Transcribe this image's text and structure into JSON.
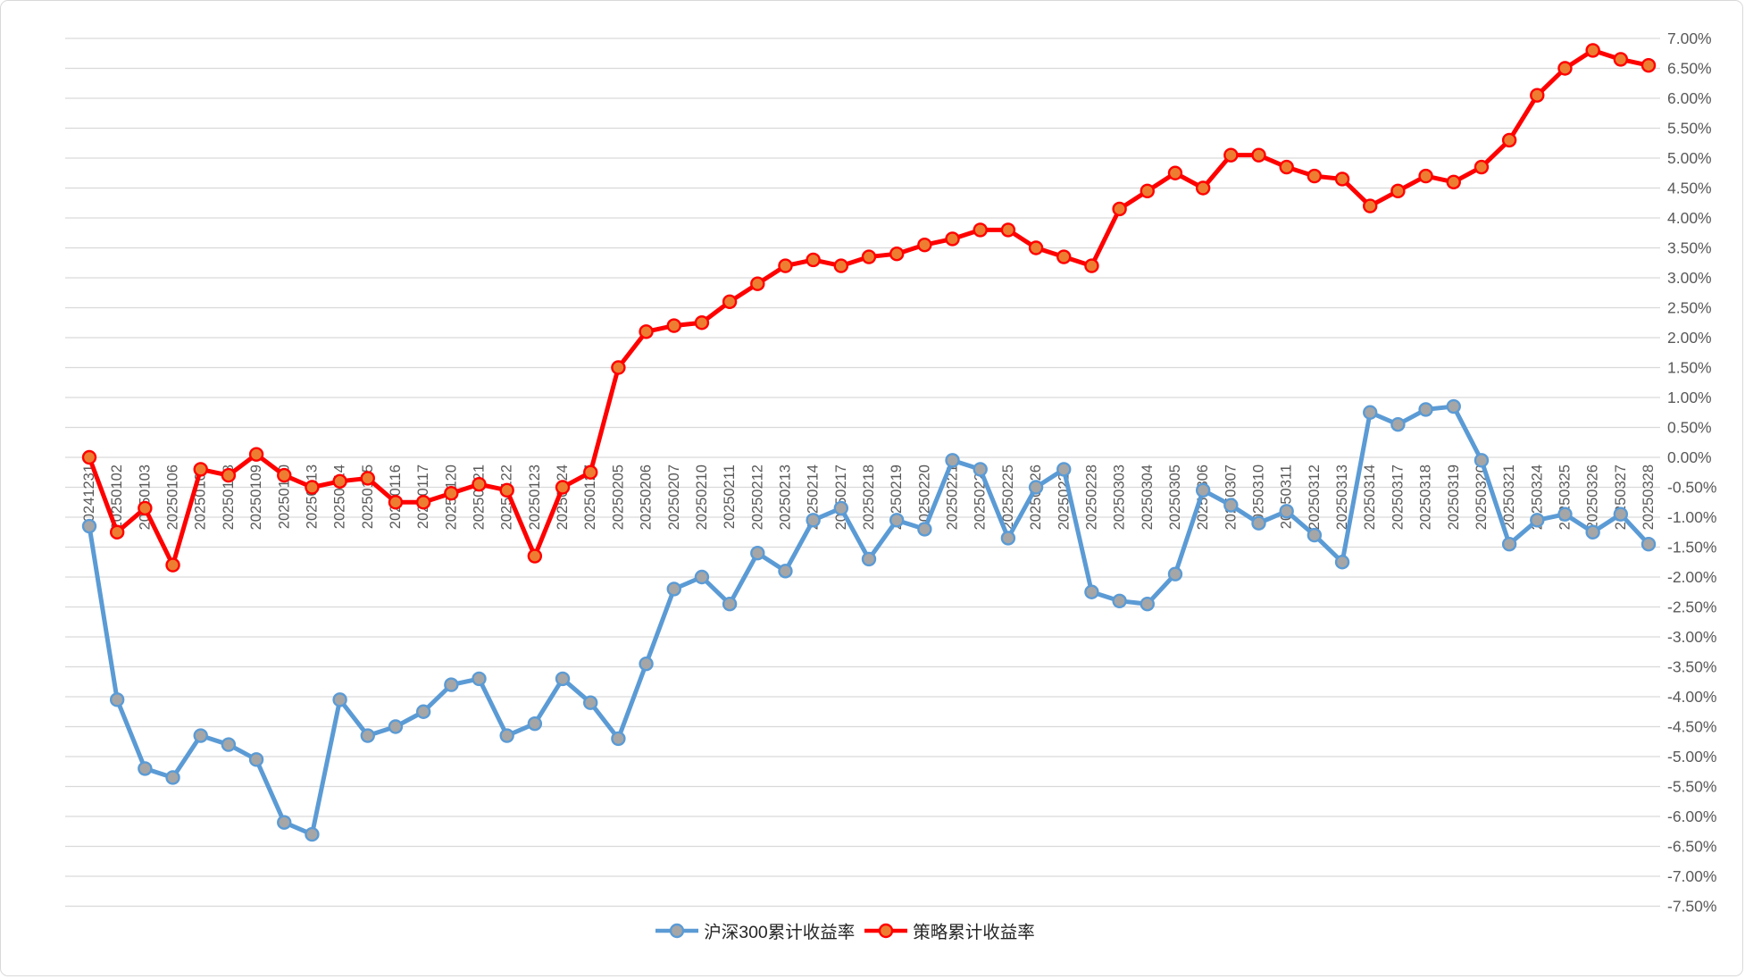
{
  "chart_data": {
    "type": "line",
    "title": "",
    "x_categories": [
      "20241231",
      "20250102",
      "20250103",
      "20250106",
      "20250107",
      "20250108",
      "20250109",
      "20250110",
      "20250113",
      "20250114",
      "20250115",
      "20250116",
      "20250117",
      "20250120",
      "20250121",
      "20250122",
      "20250123",
      "20250124",
      "20250127",
      "20250205",
      "20250206",
      "20250207",
      "20250210",
      "20250211",
      "20250212",
      "20250213",
      "20250214",
      "20250217",
      "20250218",
      "20250219",
      "20250220",
      "20250221",
      "20250224",
      "20250225",
      "20250226",
      "20250227",
      "20250228",
      "20250303",
      "20250304",
      "20250305",
      "20250306",
      "20250307",
      "20250310",
      "20250311",
      "20250312",
      "20250313",
      "20250314",
      "20250317",
      "20250318",
      "20250319",
      "20250320",
      "20250321",
      "20250324",
      "20250325",
      "20250326",
      "20250327",
      "20250328"
    ],
    "series": [
      {
        "name": "沪深300累计收益率",
        "color": "#5B9BD5",
        "marker_fill": "#A6A6A6",
        "values": [
          -1.15,
          -4.05,
          -5.2,
          -5.35,
          -4.65,
          -4.8,
          -5.05,
          -6.1,
          -6.3,
          -4.05,
          -4.65,
          -4.5,
          -4.25,
          -3.8,
          -3.7,
          -4.65,
          -4.45,
          -3.7,
          -4.1,
          -4.7,
          -3.45,
          -2.2,
          -2.0,
          -2.45,
          -1.6,
          -1.9,
          -1.05,
          -0.85,
          -1.7,
          -1.05,
          -1.2,
          -0.05,
          -0.2,
          -1.35,
          -0.5,
          -0.2,
          -2.25,
          -2.4,
          -2.45,
          -1.95,
          -0.55,
          -0.8,
          -1.1,
          -0.9,
          -1.3,
          -1.75,
          0.75,
          0.55,
          0.8,
          0.85,
          -0.05,
          -1.45,
          -1.05,
          -0.95,
          -1.25,
          -0.95,
          -1.45
        ]
      },
      {
        "name": "策略累计收益率",
        "color": "#FF0000",
        "marker_fill": "#ED7D31",
        "values": [
          0.0,
          -1.25,
          -0.85,
          -1.8,
          -0.2,
          -0.3,
          0.05,
          -0.3,
          -0.5,
          -0.4,
          -0.35,
          -0.75,
          -0.75,
          -0.6,
          -0.45,
          -0.55,
          -1.65,
          -0.5,
          -0.25,
          1.5,
          2.1,
          2.2,
          2.25,
          2.6,
          2.9,
          3.2,
          3.3,
          3.2,
          3.35,
          3.4,
          3.55,
          3.65,
          3.8,
          3.8,
          3.5,
          3.35,
          3.2,
          4.15,
          4.45,
          4.75,
          4.5,
          5.05,
          5.05,
          4.85,
          4.7,
          4.65,
          4.2,
          4.45,
          4.7,
          4.6,
          4.85,
          5.3,
          6.05,
          6.5,
          6.8,
          6.65,
          6.55
        ]
      }
    ],
    "y_axis": {
      "min": -7.5,
      "max": 7.0,
      "step": 0.5,
      "side": "right",
      "tick_format": "0.00%"
    },
    "x_axis": {
      "label_rotation": -90
    },
    "grid": true,
    "legend_position": "bottom-center",
    "colors": {
      "gridline": "#D9D9D9",
      "tick_text": "#595959",
      "background": "#FFFFFF",
      "border": "#D9D9D9"
    }
  }
}
